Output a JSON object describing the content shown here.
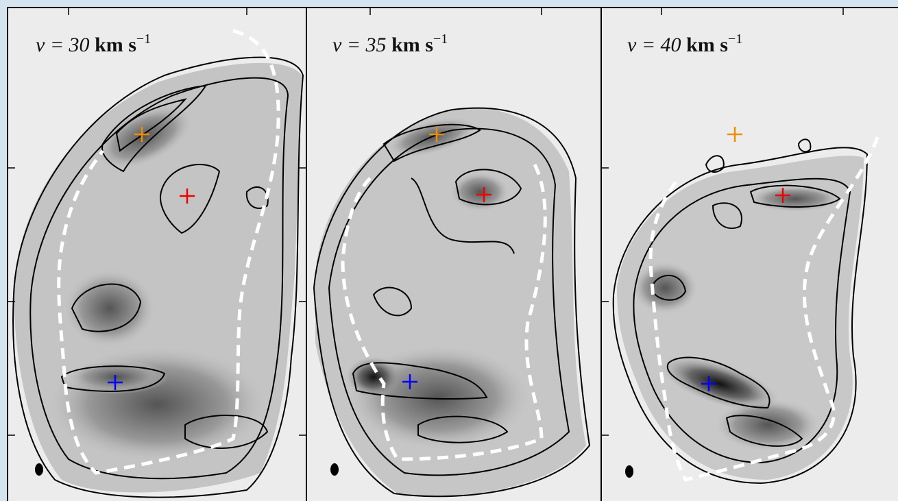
{
  "panels": [
    {
      "velocity": "v = 30",
      "unit": "km s",
      "exponent": "−1"
    },
    {
      "velocity": "v = 35",
      "unit": "km s",
      "exponent": "−1"
    },
    {
      "velocity": "v = 40",
      "unit": "km s",
      "exponent": "−1"
    }
  ]
}
